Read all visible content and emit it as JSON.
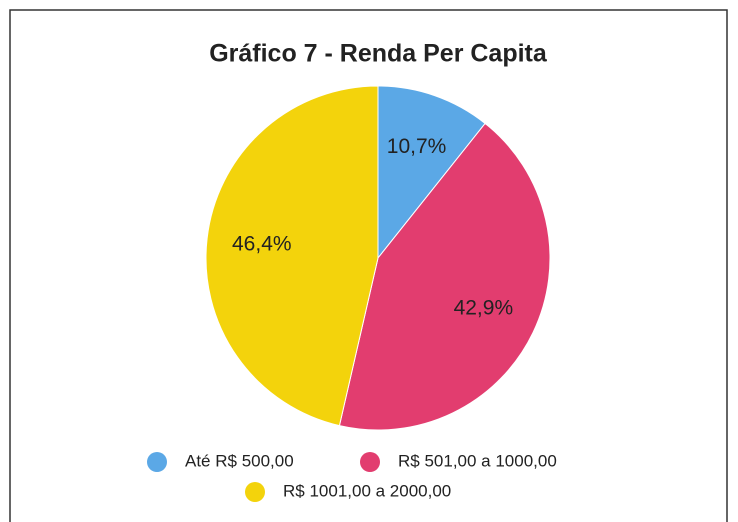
{
  "chart_data": {
    "type": "pie",
    "title": "Gráfico 7 - Renda Per Capita",
    "categories": [
      "Até R$ 500,00",
      "R$ 501,00 a 1000,00",
      "R$ 1001,00 a 2000,00"
    ],
    "values": [
      10.7,
      42.9,
      46.4
    ],
    "value_labels": [
      "10,7%",
      "42,9%",
      "46,4%"
    ],
    "colors": [
      "#5ba8e6",
      "#e23d6f",
      "#f3d30c"
    ]
  }
}
